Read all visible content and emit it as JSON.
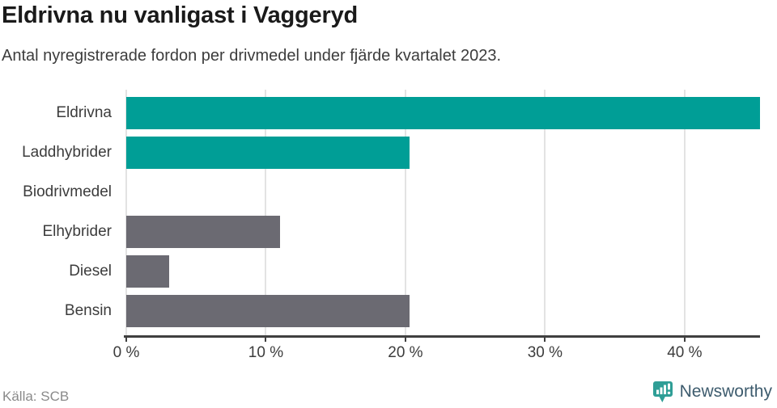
{
  "header": {
    "title": "Eldrivna nu vanligast i Vaggeryd",
    "subtitle": "Antal nyregistrerade fordon per drivmedel under fjärde kvartalet 2023."
  },
  "chart_data": {
    "type": "bar",
    "orientation": "horizontal",
    "title": "Eldrivna nu vanligast i Vaggeryd",
    "subtitle": "Antal nyregistrerade fordon per drivmedel under fjärde kvartalet 2023.",
    "categories": [
      "Eldrivna",
      "Laddhybrider",
      "Biodrivmedel",
      "Elhybrider",
      "Diesel",
      "Bensin"
    ],
    "values": [
      45.4,
      20.3,
      0,
      11,
      3.1,
      20.3
    ],
    "unit": "%",
    "xlim": [
      0,
      45.4
    ],
    "xticks": [
      0,
      10,
      20,
      30,
      40
    ],
    "xtick_labels": [
      "0 %",
      "10 %",
      "20 %",
      "30 %",
      "40 %"
    ],
    "grid": true,
    "legend": false,
    "bar_colors": [
      "#009E96",
      "#009E96",
      "#6B6A72",
      "#6B6A72",
      "#6B6A72",
      "#6B6A72"
    ]
  },
  "footer": {
    "source": "Källa: SCB",
    "brand": "Newsworthy"
  },
  "colors": {
    "highlight": "#009E96",
    "neutral": "#6B6A72",
    "grid": "#E3E3E3",
    "axis": "#3F3F3F",
    "title_text": "#1A1A1A",
    "body_text": "#3C3C3C",
    "source_text": "#8A8A8A",
    "brand_text": "#3E5C6E",
    "brand_icon": "#2F9E96"
  }
}
